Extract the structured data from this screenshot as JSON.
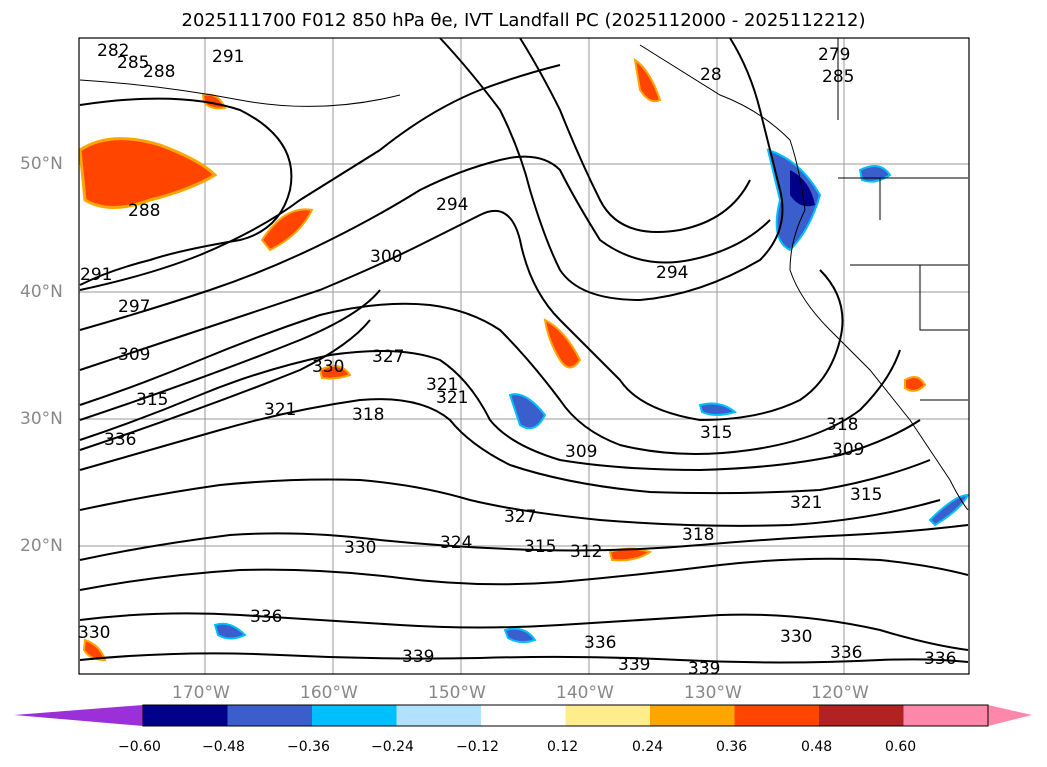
{
  "title": "2025111700 F012 850 hPa θe, IVT Landfall PC (2025112000 - 2025112212)",
  "map": {
    "lat_labels": [
      "50°N",
      "40°N",
      "30°N",
      "20°N"
    ],
    "lon_labels": [
      "170°W",
      "160°W",
      "150°W",
      "140°W",
      "130°W",
      "120°W"
    ],
    "contour_labels": [
      "282",
      "285",
      "288",
      "291",
      "279",
      "285",
      "28",
      "288",
      "294",
      "300",
      "291",
      "297",
      "294",
      "309",
      "330",
      "327",
      "321",
      "321",
      "315",
      "321",
      "318",
      "336",
      "309",
      "315",
      "327",
      "318",
      "309",
      "321",
      "315",
      "324",
      "312",
      "315",
      "330",
      "318",
      "336",
      "330",
      "339",
      "336",
      "339",
      "330",
      "336",
      "339",
      "336"
    ]
  },
  "colorbar": {
    "ticks": [
      "−0.60",
      "−0.48",
      "−0.36",
      "−0.24",
      "−0.12",
      "0.12",
      "0.24",
      "0.36",
      "0.48",
      "0.60"
    ],
    "colors": {
      "under": "#9b30d8",
      "bins": [
        "#00008b",
        "#3a5fcd",
        "#00bfff",
        "#b0e2ff",
        "#ffffff",
        "#ffec8b",
        "#ffa500",
        "#ff4500",
        "#b22222",
        "#ff88aa"
      ],
      "over": "#ff88aa"
    }
  }
}
